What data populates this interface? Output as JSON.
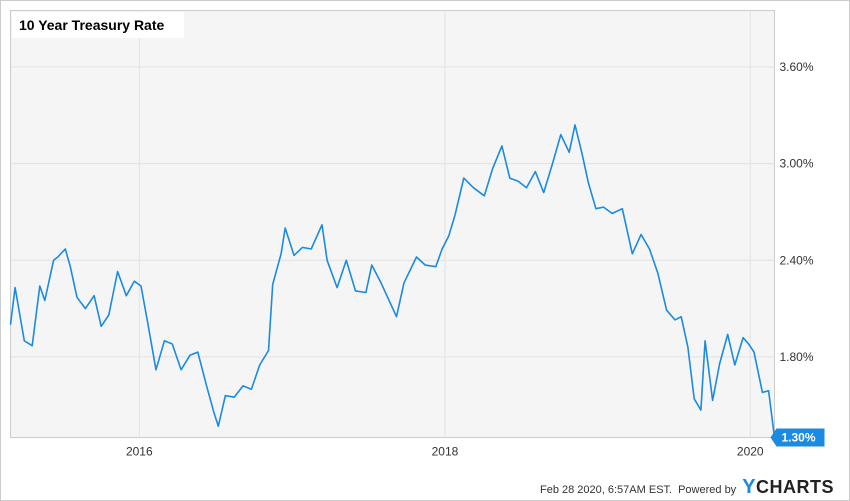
{
  "chart_data": {
    "type": "line",
    "title": "10 Year Treasury Rate",
    "xlabel": "",
    "ylabel": "",
    "x_ticks": [
      "2016",
      "2018",
      "2020"
    ],
    "y_ticks": [
      "1.80%",
      "2.40%",
      "3.00%",
      "3.60%"
    ],
    "ylim": [
      1.3,
      3.95
    ],
    "xlim": [
      "2015-02-27",
      "2020-02-28"
    ],
    "grid": true,
    "last_value_label": "1.30%",
    "series": [
      {
        "color": "#1a8be0",
        "x": [
          "2015-02-27",
          "2015-03-10",
          "2015-04-01",
          "2015-04-20",
          "2015-05-08",
          "2015-05-20",
          "2015-06-10",
          "2015-06-20",
          "2015-07-08",
          "2015-07-20",
          "2015-08-05",
          "2015-08-25",
          "2015-09-15",
          "2015-10-02",
          "2015-10-20",
          "2015-11-10",
          "2015-12-01",
          "2015-12-20",
          "2016-01-05",
          "2016-01-20",
          "2016-02-10",
          "2016-03-01",
          "2016-03-20",
          "2016-04-10",
          "2016-05-01",
          "2016-05-20",
          "2016-06-10",
          "2016-06-27",
          "2016-07-08",
          "2016-07-25",
          "2016-08-15",
          "2016-09-05",
          "2016-09-25",
          "2016-10-15",
          "2016-11-05",
          "2016-11-15",
          "2016-12-05",
          "2016-12-15",
          "2017-01-05",
          "2017-01-25",
          "2017-02-15",
          "2017-03-13",
          "2017-03-25",
          "2017-04-18",
          "2017-05-10",
          "2017-06-01",
          "2017-06-26",
          "2017-07-10",
          "2017-08-01",
          "2017-09-07",
          "2017-09-25",
          "2017-10-25",
          "2017-11-15",
          "2017-12-10",
          "2017-12-25",
          "2018-01-10",
          "2018-01-25",
          "2018-02-15",
          "2018-03-10",
          "2018-04-05",
          "2018-04-25",
          "2018-05-17",
          "2018-06-05",
          "2018-06-25",
          "2018-07-15",
          "2018-08-05",
          "2018-08-25",
          "2018-09-15",
          "2018-10-05",
          "2018-10-25",
          "2018-11-08",
          "2018-11-25",
          "2018-12-10",
          "2018-12-28",
          "2019-01-15",
          "2019-02-05",
          "2019-03-01",
          "2019-03-25",
          "2019-04-15",
          "2019-05-05",
          "2019-05-25",
          "2019-06-15",
          "2019-07-05",
          "2019-07-20",
          "2019-08-05",
          "2019-08-20",
          "2019-09-05",
          "2019-09-15",
          "2019-10-03",
          "2019-10-20",
          "2019-11-08",
          "2019-11-25",
          "2019-12-15",
          "2019-12-28",
          "2020-01-10",
          "2020-01-30",
          "2020-02-14",
          "2020-02-28"
        ],
        "y": [
          2.0,
          2.23,
          1.9,
          1.87,
          2.24,
          2.15,
          2.4,
          2.42,
          2.47,
          2.36,
          2.17,
          2.1,
          2.18,
          1.99,
          2.06,
          2.33,
          2.18,
          2.27,
          2.24,
          2.03,
          1.72,
          1.9,
          1.88,
          1.72,
          1.81,
          1.83,
          1.62,
          1.46,
          1.37,
          1.56,
          1.55,
          1.62,
          1.6,
          1.75,
          1.84,
          2.25,
          2.44,
          2.6,
          2.43,
          2.48,
          2.47,
          2.62,
          2.4,
          2.23,
          2.4,
          2.21,
          2.2,
          2.37,
          2.26,
          2.05,
          2.26,
          2.42,
          2.37,
          2.36,
          2.47,
          2.55,
          2.68,
          2.91,
          2.85,
          2.8,
          2.97,
          3.11,
          2.91,
          2.89,
          2.85,
          2.95,
          2.82,
          3.0,
          3.18,
          3.07,
          3.24,
          3.06,
          2.88,
          2.72,
          2.73,
          2.69,
          2.72,
          2.44,
          2.56,
          2.47,
          2.32,
          2.09,
          2.03,
          2.05,
          1.86,
          1.54,
          1.47,
          1.9,
          1.53,
          1.76,
          1.94,
          1.75,
          1.92,
          1.88,
          1.83,
          1.58,
          1.59,
          1.3
        ]
      }
    ]
  }
}
